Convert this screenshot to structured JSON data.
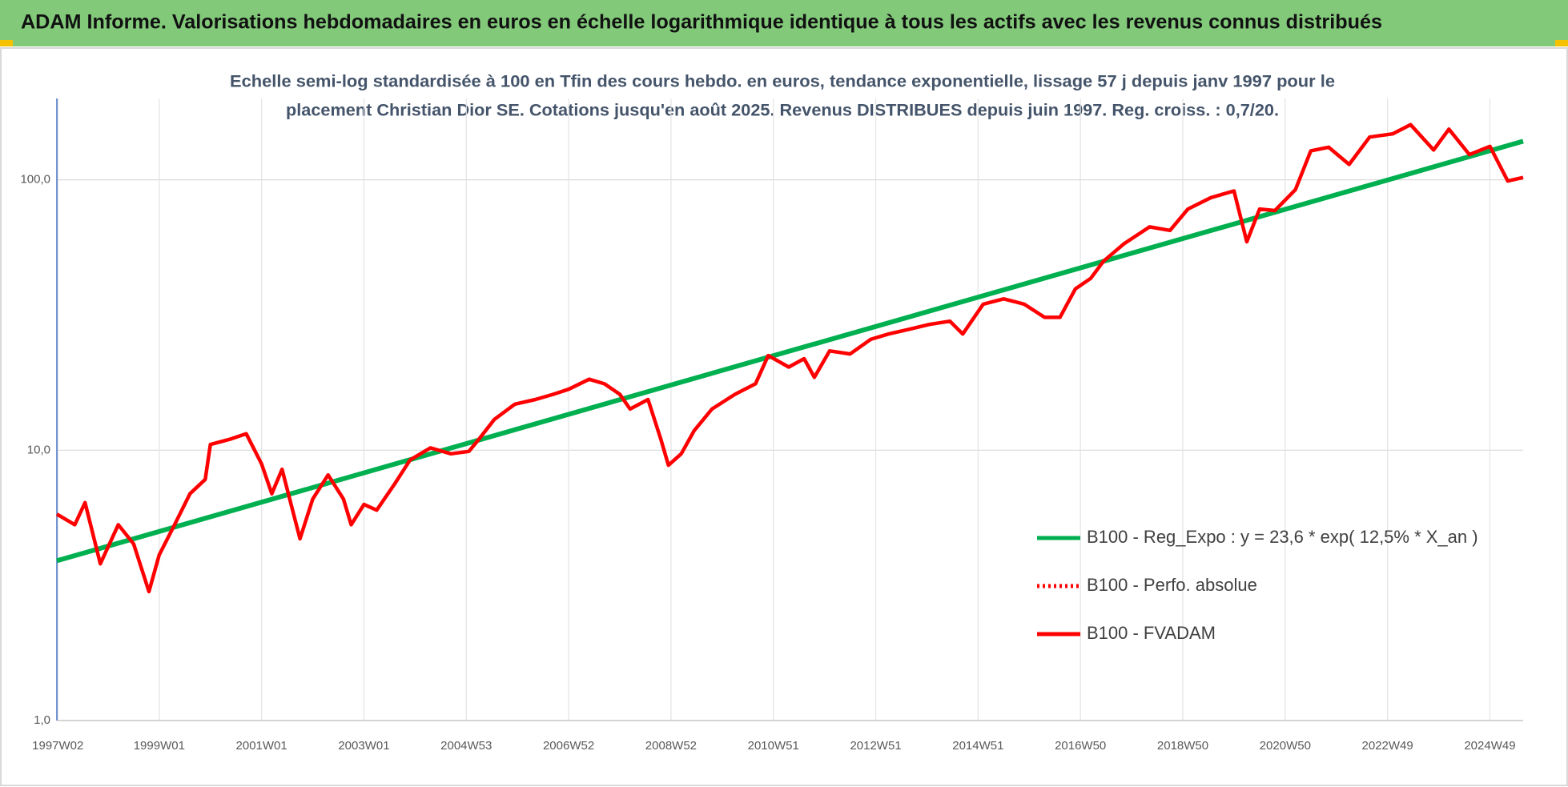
{
  "chart_data": {
    "type": "line",
    "title": "ADAM Informe. Valorisations hebdomadaires en euros en échelle logarithmique identique à tous les actifs avec les revenus connus distribués",
    "subtitle": [
      "Echelle semi-log standardisée à 100 en Tfin des cours hebdo. en euros, tendance exponentielle, lissage 57 j depuis janv 1997 pour le",
      "placement Christian Dior SE. Cotations jusqu'en août 2025. Revenus DISTRIBUES depuis juin 1997. Reg. croiss. : 0,7/20."
    ],
    "log_scale_y": true,
    "grid": true,
    "legend": "lower right",
    "xlim": [
      1997,
      2025.65
    ],
    "xticks": [
      {
        "value": 1997.02,
        "label": "1997W02"
      },
      {
        "value": 1999,
        "label": "1999W01"
      },
      {
        "value": 2001,
        "label": "2001W01"
      },
      {
        "value": 2003,
        "label": "2003W01"
      },
      {
        "value": 2005,
        "label": "2004W53"
      },
      {
        "value": 2007,
        "label": "2006W52"
      },
      {
        "value": 2009,
        "label": "2008W52"
      },
      {
        "value": 2011,
        "label": "2010W51"
      },
      {
        "value": 2013,
        "label": "2012W51"
      },
      {
        "value": 2015,
        "label": "2014W51"
      },
      {
        "value": 2017,
        "label": "2016W50"
      },
      {
        "value": 2019,
        "label": "2018W50"
      },
      {
        "value": 2021,
        "label": "2020W50"
      },
      {
        "value": 2023,
        "label": "2022W49"
      },
      {
        "value": 2025,
        "label": "2024W49"
      }
    ],
    "ylim": [
      1,
      200
    ],
    "yticks": [
      {
        "value": 1,
        "label": "1,0"
      },
      {
        "value": 10,
        "label": "10,0"
      },
      {
        "value": 100,
        "label": "100,0"
      }
    ],
    "series": [
      {
        "name": "B100 - Reg_Expo : y = 23,6 * exp( 12,5% *  X_an )",
        "color": "#00b050",
        "x": [
          1997,
          2025.65
        ],
        "values": [
          3.9,
          139
        ]
      },
      {
        "name": "B100 - Perfo. absolue",
        "color": "#ff0000",
        "dash": "dotted"
      },
      {
        "name": "B100 - FVADAM",
        "color": "#ff0000",
        "x": [
          1997.0,
          1997.35,
          1997.55,
          1997.85,
          1998.2,
          1998.5,
          1998.8,
          1999.0,
          1999.3,
          1999.6,
          1999.9,
          2000.0,
          2000.4,
          2000.7,
          2001.0,
          2001.2,
          2001.4,
          2001.75,
          2002.0,
          2002.3,
          2002.6,
          2002.75,
          2003.0,
          2003.25,
          2003.6,
          2003.9,
          2004.3,
          2004.7,
          2005.05,
          2005.25,
          2005.55,
          2005.95,
          2006.35,
          2006.7,
          2007.0,
          2007.4,
          2007.7,
          2008.0,
          2008.2,
          2008.55,
          2008.8,
          2008.95,
          2009.2,
          2009.45,
          2009.8,
          2010.25,
          2010.65,
          2010.9,
          2011.3,
          2011.6,
          2011.8,
          2012.1,
          2012.5,
          2012.9,
          2013.25,
          2013.65,
          2014.05,
          2014.45,
          2014.7,
          2015.1,
          2015.5,
          2015.9,
          2016.3,
          2016.6,
          2016.9,
          2017.2,
          2017.45,
          2017.85,
          2018.35,
          2018.75,
          2019.1,
          2019.55,
          2020.0,
          2020.25,
          2020.5,
          2020.8,
          2021.2,
          2021.5,
          2021.85,
          2022.25,
          2022.65,
          2023.1,
          2023.45,
          2023.9,
          2024.2,
          2024.6,
          2025.0,
          2025.35,
          2025.65
        ],
        "values": [
          5.8,
          5.3,
          6.4,
          3.8,
          5.3,
          4.5,
          3.0,
          4.1,
          5.3,
          6.9,
          7.8,
          10.5,
          11.0,
          11.5,
          8.9,
          6.9,
          8.5,
          4.7,
          6.6,
          8.1,
          6.6,
          5.3,
          6.3,
          6.0,
          7.5,
          9.2,
          10.2,
          9.7,
          9.9,
          11.0,
          13.0,
          14.8,
          15.4,
          16.1,
          16.8,
          18.3,
          17.6,
          16.1,
          14.2,
          15.4,
          11.0,
          8.8,
          9.7,
          11.8,
          14.2,
          16.1,
          17.6,
          22.4,
          20.3,
          21.8,
          18.6,
          23.3,
          22.7,
          25.7,
          26.9,
          28.0,
          29.2,
          30.0,
          26.9,
          34.7,
          36.3,
          34.7,
          31.0,
          31.0,
          39.5,
          43.2,
          50,
          58,
          67,
          65,
          78,
          86,
          91,
          59,
          78,
          77,
          92,
          128,
          132,
          114,
          144,
          148,
          160,
          129,
          154,
          124,
          133,
          99,
          102
        ]
      }
    ]
  }
}
